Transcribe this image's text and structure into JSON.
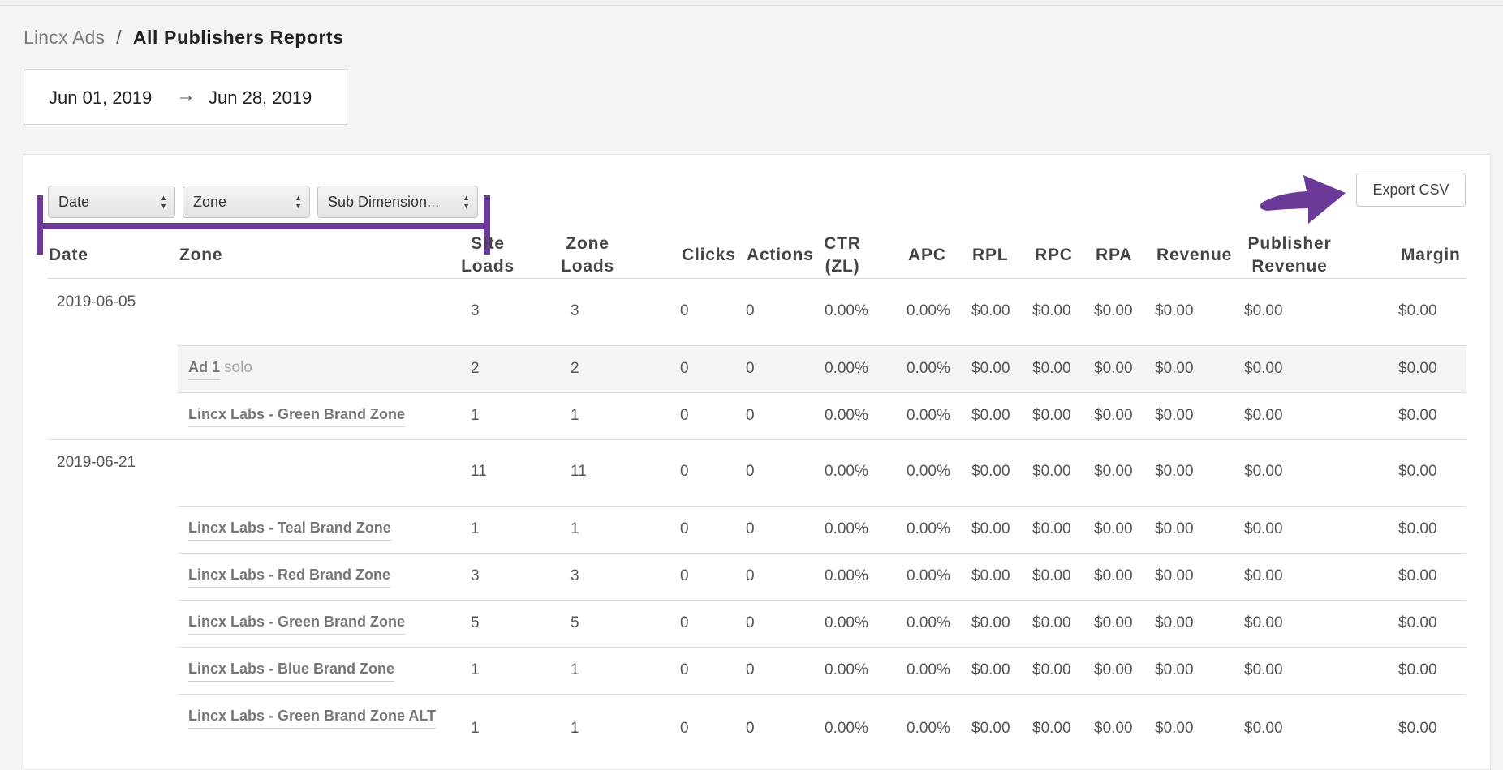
{
  "breadcrumb": {
    "root": "Lincx Ads",
    "separator": "/",
    "current": "All Publishers Reports"
  },
  "date_range": {
    "start": "Jun 01, 2019",
    "arrow": "→",
    "end": "Jun 28, 2019"
  },
  "filters": {
    "dimension1": "Date",
    "dimension2": "Zone",
    "dimension3": "Sub Dimension..."
  },
  "export_label": "Export CSV",
  "annotation_color": "#6b3a99",
  "table": {
    "headers": {
      "date": "Date",
      "zone": "Zone",
      "site_loads_1": "Site",
      "site_loads_2": "Loads",
      "zone_loads_1": "Zone",
      "zone_loads_2": "Loads",
      "clicks": "Clicks",
      "actions": "Actions",
      "ctr_1": "CTR",
      "ctr_2": "(ZL)",
      "apc": "APC",
      "rpl": "RPL",
      "rpc": "RPC",
      "rpa": "RPA",
      "revenue": "Revenue",
      "pub_rev_1": "Publisher",
      "pub_rev_2": "Revenue",
      "margin": "Margin"
    },
    "rows": [
      {
        "date": "2019-06-05",
        "zone": "",
        "tag": "",
        "site_loads": "3",
        "zone_loads": "3",
        "clicks": "0",
        "actions": "0",
        "ctr": "0.00%",
        "apc": "0.00%",
        "rpl": "$0.00",
        "rpc": "$0.00",
        "rpa": "$0.00",
        "revenue": "$0.00",
        "pub_revenue": "$0.00",
        "margin": "$0.00"
      },
      {
        "date": "",
        "zone": "Ad 1",
        "tag": "solo",
        "site_loads": "2",
        "zone_loads": "2",
        "clicks": "0",
        "actions": "0",
        "ctr": "0.00%",
        "apc": "0.00%",
        "rpl": "$0.00",
        "rpc": "$0.00",
        "rpa": "$0.00",
        "revenue": "$0.00",
        "pub_revenue": "$0.00",
        "margin": "$0.00"
      },
      {
        "date": "",
        "zone": "Lincx Labs - Green Brand Zone",
        "tag": "",
        "site_loads": "1",
        "zone_loads": "1",
        "clicks": "0",
        "actions": "0",
        "ctr": "0.00%",
        "apc": "0.00%",
        "rpl": "$0.00",
        "rpc": "$0.00",
        "rpa": "$0.00",
        "revenue": "$0.00",
        "pub_revenue": "$0.00",
        "margin": "$0.00"
      },
      {
        "date": "2019-06-21",
        "zone": "",
        "tag": "",
        "site_loads": "11",
        "zone_loads": "11",
        "clicks": "0",
        "actions": "0",
        "ctr": "0.00%",
        "apc": "0.00%",
        "rpl": "$0.00",
        "rpc": "$0.00",
        "rpa": "$0.00",
        "revenue": "$0.00",
        "pub_revenue": "$0.00",
        "margin": "$0.00"
      },
      {
        "date": "",
        "zone": "Lincx Labs - Teal Brand Zone",
        "tag": "",
        "site_loads": "1",
        "zone_loads": "1",
        "clicks": "0",
        "actions": "0",
        "ctr": "0.00%",
        "apc": "0.00%",
        "rpl": "$0.00",
        "rpc": "$0.00",
        "rpa": "$0.00",
        "revenue": "$0.00",
        "pub_revenue": "$0.00",
        "margin": "$0.00"
      },
      {
        "date": "",
        "zone": "Lincx Labs - Red Brand Zone",
        "tag": "",
        "site_loads": "3",
        "zone_loads": "3",
        "clicks": "0",
        "actions": "0",
        "ctr": "0.00%",
        "apc": "0.00%",
        "rpl": "$0.00",
        "rpc": "$0.00",
        "rpa": "$0.00",
        "revenue": "$0.00",
        "pub_revenue": "$0.00",
        "margin": "$0.00"
      },
      {
        "date": "",
        "zone": "Lincx Labs - Green Brand Zone",
        "tag": "",
        "site_loads": "5",
        "zone_loads": "5",
        "clicks": "0",
        "actions": "0",
        "ctr": "0.00%",
        "apc": "0.00%",
        "rpl": "$0.00",
        "rpc": "$0.00",
        "rpa": "$0.00",
        "revenue": "$0.00",
        "pub_revenue": "$0.00",
        "margin": "$0.00"
      },
      {
        "date": "",
        "zone": "Lincx Labs - Blue Brand Zone",
        "tag": "",
        "site_loads": "1",
        "zone_loads": "1",
        "clicks": "0",
        "actions": "0",
        "ctr": "0.00%",
        "apc": "0.00%",
        "rpl": "$0.00",
        "rpc": "$0.00",
        "rpa": "$0.00",
        "revenue": "$0.00",
        "pub_revenue": "$0.00",
        "margin": "$0.00"
      },
      {
        "date": "",
        "zone": "Lincx Labs - Green Brand Zone ALT",
        "tag": "",
        "site_loads": "1",
        "zone_loads": "1",
        "clicks": "0",
        "actions": "0",
        "ctr": "0.00%",
        "apc": "0.00%",
        "rpl": "$0.00",
        "rpc": "$0.00",
        "rpa": "$0.00",
        "revenue": "$0.00",
        "pub_revenue": "$0.00",
        "margin": "$0.00"
      }
    ]
  }
}
